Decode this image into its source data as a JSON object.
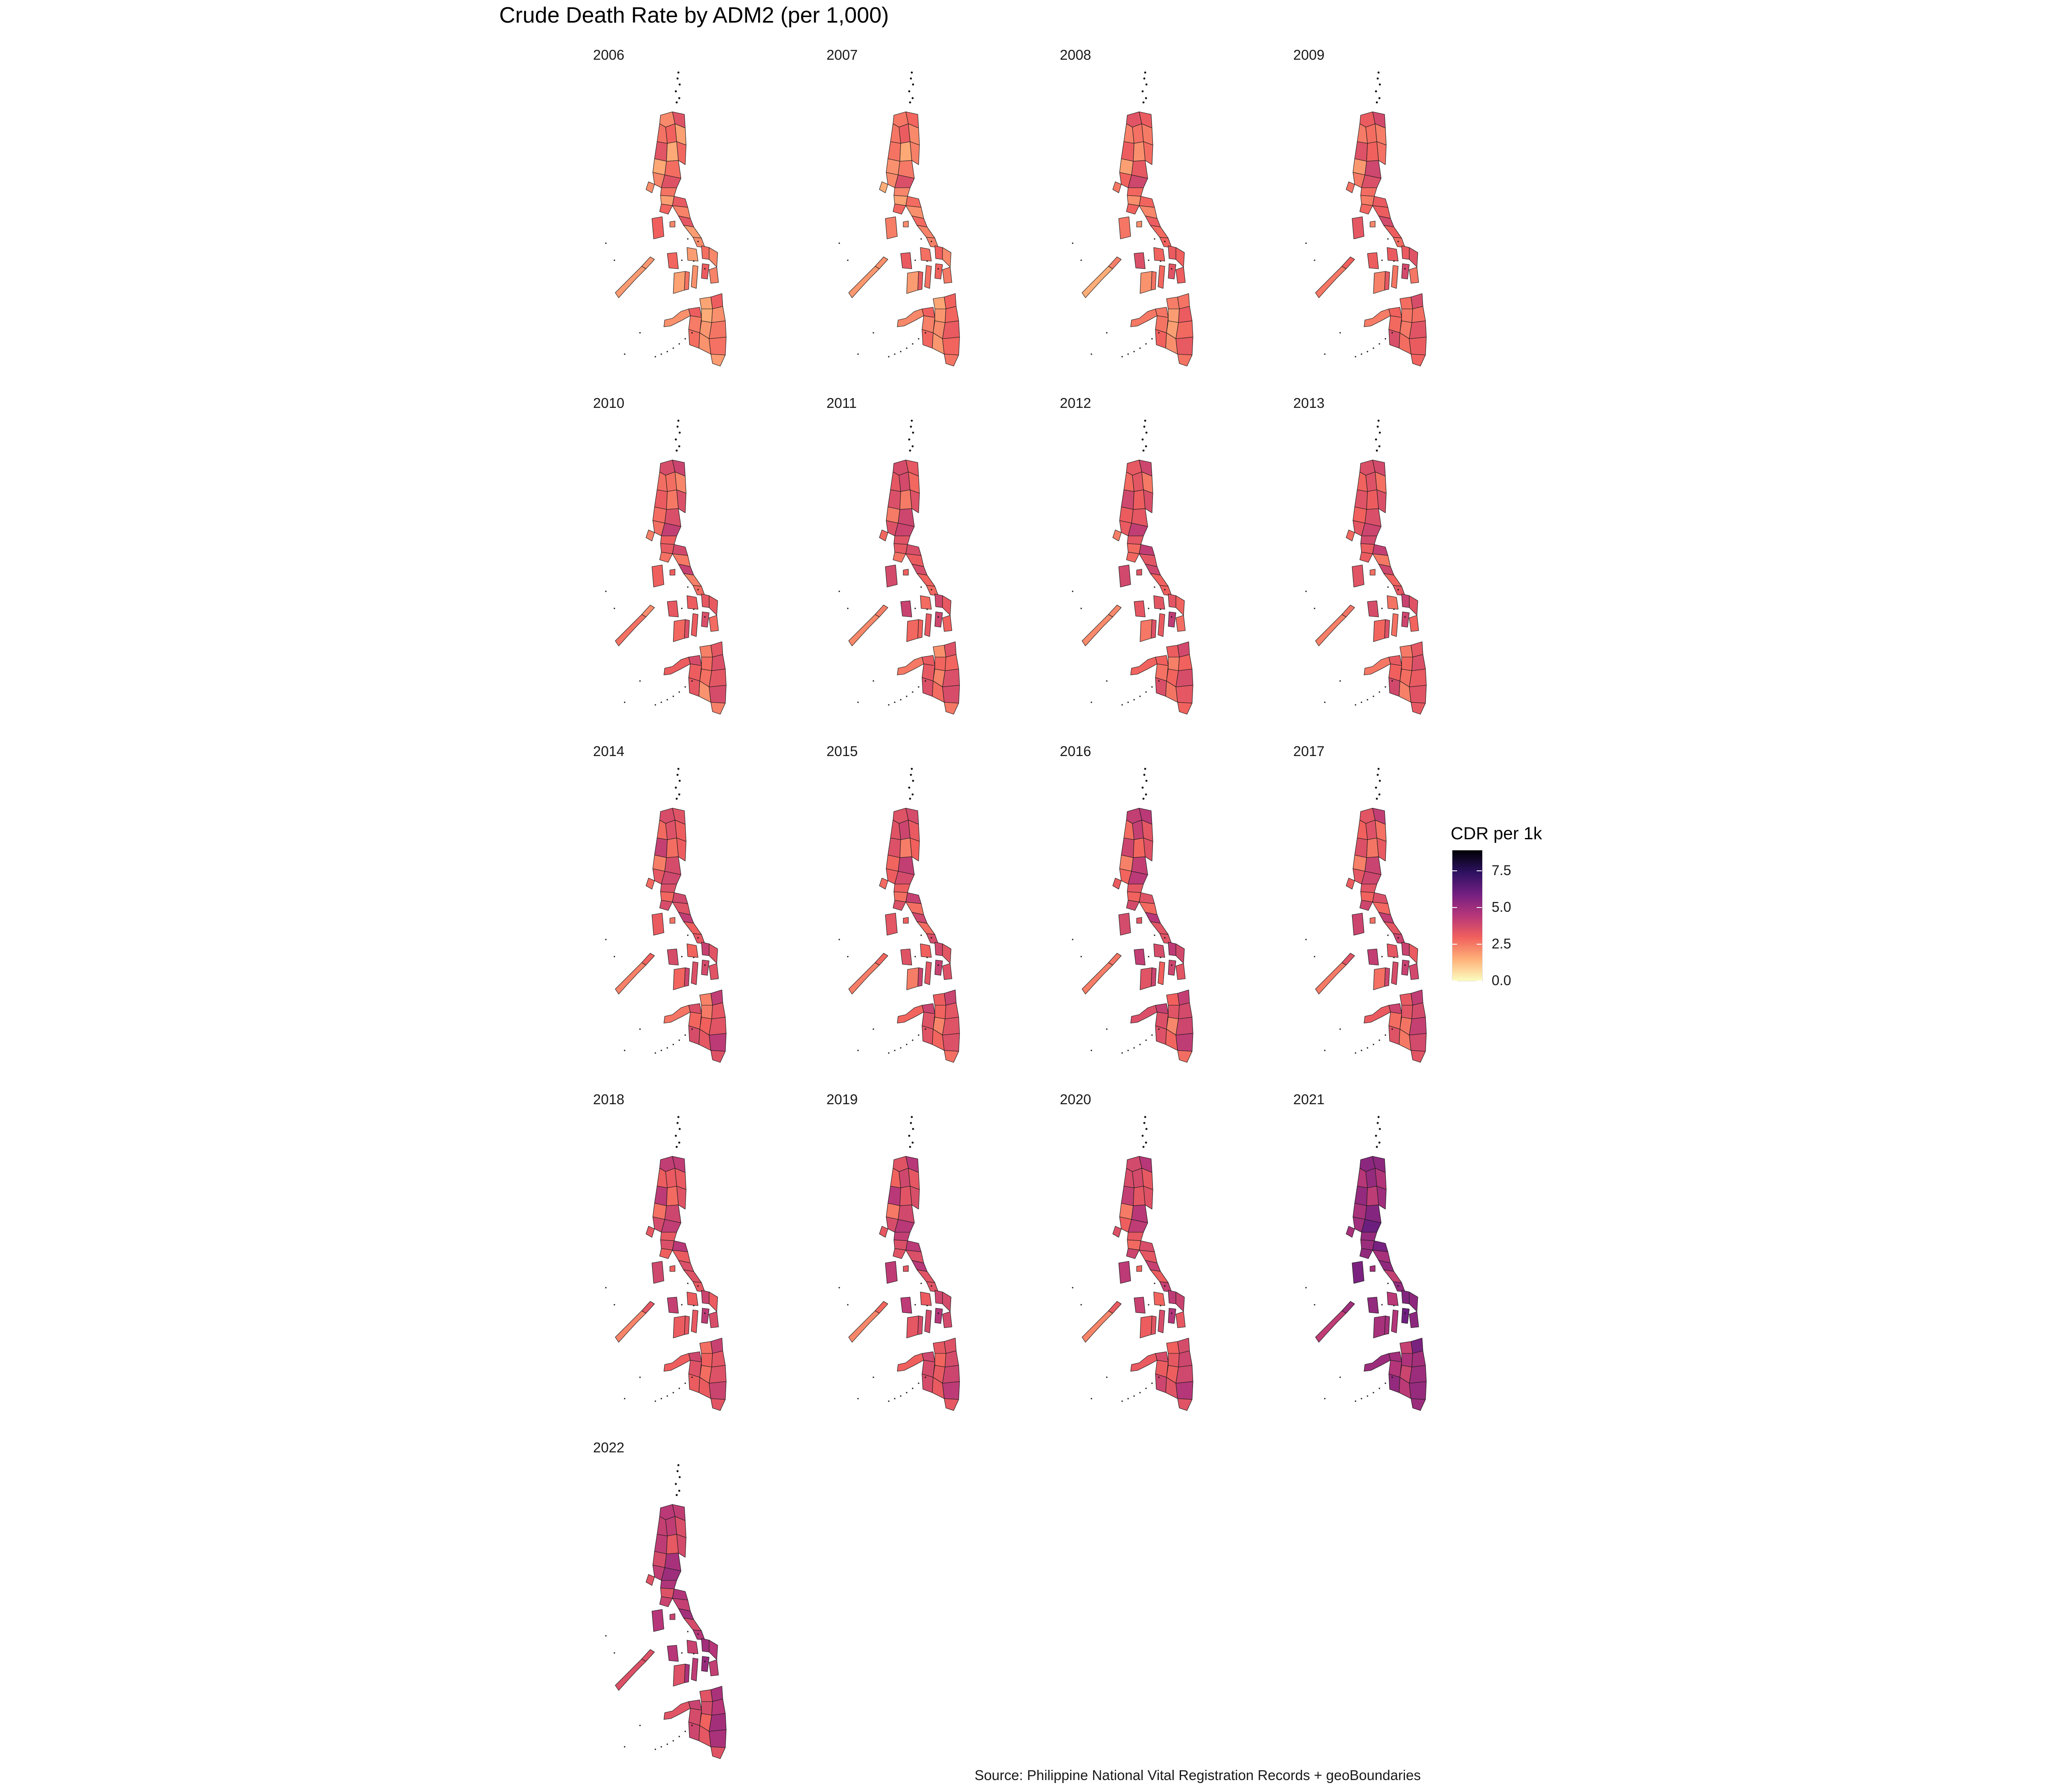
{
  "title": "Crude Death Rate by ADM2 (per 1,000)",
  "caption": "Source: Philippine National Vital Registration Records + geoBoundaries",
  "legend": {
    "title": "CDR per 1k",
    "labels": [
      "0.0",
      "2.5",
      "5.0",
      "7.5"
    ],
    "ticks": [
      0,
      2.5,
      5,
      7.5
    ],
    "range": [
      0,
      8.9
    ],
    "palette": "magma (reversed)",
    "colors": [
      "#fcfdbf",
      "#feb078",
      "#f1605d",
      "#b63679",
      "#721f81",
      "#2d1160",
      "#000004"
    ]
  },
  "facets": [
    {
      "year": "2006",
      "tone": 2.4
    },
    {
      "year": "2007",
      "tone": 2.5
    },
    {
      "year": "2008",
      "tone": 2.7
    },
    {
      "year": "2009",
      "tone": 3.0
    },
    {
      "year": "2010",
      "tone": 3.0
    },
    {
      "year": "2011",
      "tone": 3.1
    },
    {
      "year": "2012",
      "tone": 3.2
    },
    {
      "year": "2013",
      "tone": 3.2
    },
    {
      "year": "2014",
      "tone": 3.3
    },
    {
      "year": "2015",
      "tone": 3.3
    },
    {
      "year": "2016",
      "tone": 3.4
    },
    {
      "year": "2017",
      "tone": 3.4
    },
    {
      "year": "2018",
      "tone": 3.4
    },
    {
      "year": "2019",
      "tone": 3.5
    },
    {
      "year": "2020",
      "tone": 3.5
    },
    {
      "year": "2021",
      "tone": 5.0
    },
    {
      "year": "2022",
      "tone": 4.1
    }
  ]
}
